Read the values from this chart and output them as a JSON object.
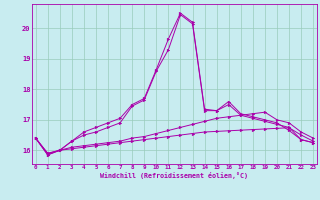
{
  "xlabel": "Windchill (Refroidissement éolien,°C)",
  "background_color": "#c8ecf0",
  "grid_color": "#99ccbb",
  "line_color": "#aa00aa",
  "x_ticks": [
    0,
    1,
    2,
    3,
    4,
    5,
    6,
    7,
    8,
    9,
    10,
    11,
    12,
    13,
    14,
    15,
    16,
    17,
    18,
    19,
    20,
    21,
    22,
    23
  ],
  "y_ticks": [
    16,
    17,
    18,
    19,
    20
  ],
  "xlim": [
    -0.3,
    23.3
  ],
  "ylim": [
    15.55,
    20.8
  ],
  "series": [
    [
      16.4,
      15.9,
      16.0,
      16.05,
      16.1,
      16.15,
      16.2,
      16.25,
      16.3,
      16.35,
      16.4,
      16.45,
      16.5,
      16.55,
      16.6,
      16.62,
      16.64,
      16.66,
      16.68,
      16.7,
      16.72,
      16.74,
      16.5,
      16.3
    ],
    [
      16.4,
      15.9,
      16.0,
      16.1,
      16.15,
      16.2,
      16.25,
      16.3,
      16.4,
      16.45,
      16.55,
      16.65,
      16.75,
      16.85,
      16.95,
      17.05,
      17.1,
      17.15,
      17.2,
      17.25,
      17.0,
      16.9,
      16.6,
      16.4
    ],
    [
      16.4,
      15.85,
      16.0,
      16.3,
      16.5,
      16.6,
      16.75,
      16.9,
      17.45,
      17.65,
      18.6,
      19.3,
      20.45,
      20.15,
      17.3,
      17.3,
      17.5,
      17.15,
      17.05,
      16.95,
      16.85,
      16.75,
      16.35,
      16.25
    ],
    [
      16.4,
      15.85,
      16.0,
      16.3,
      16.6,
      16.75,
      16.9,
      17.05,
      17.5,
      17.7,
      18.65,
      19.65,
      20.5,
      20.2,
      17.35,
      17.3,
      17.6,
      17.2,
      17.1,
      17.0,
      16.9,
      16.65,
      16.35,
      16.25
    ]
  ]
}
